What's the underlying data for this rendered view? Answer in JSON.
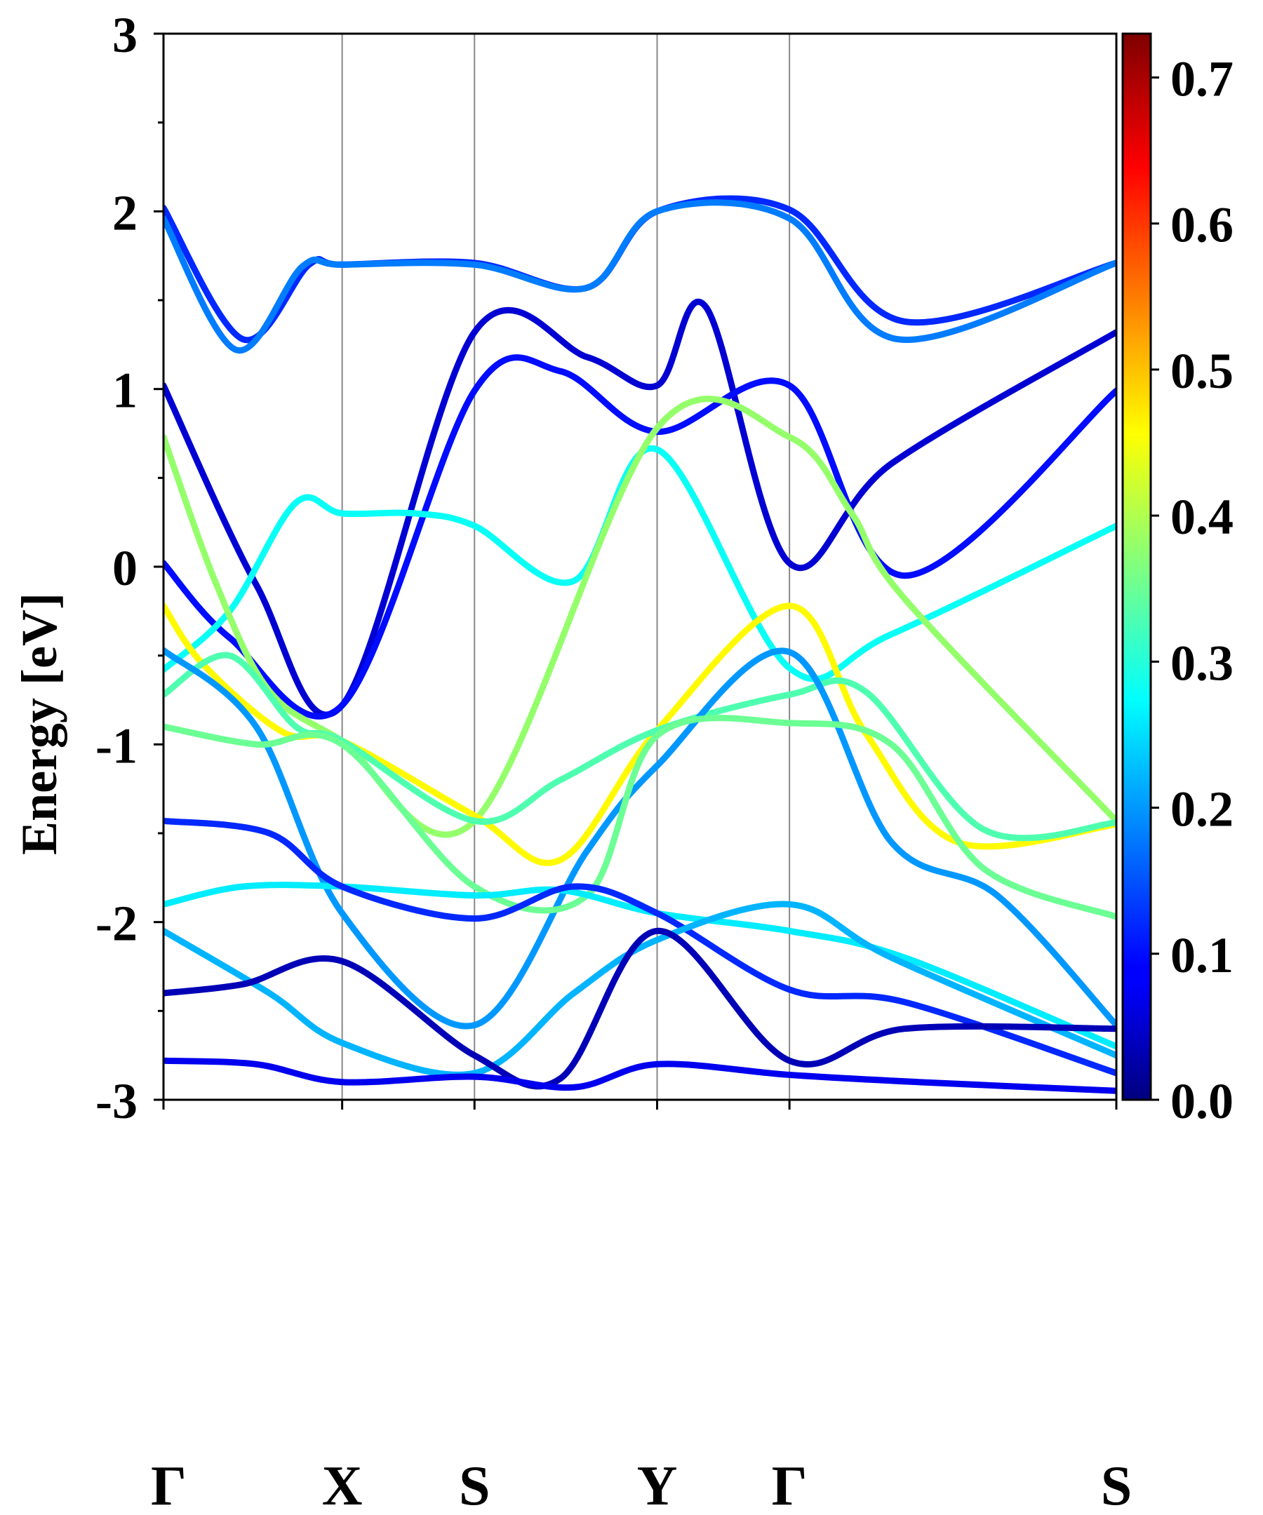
{
  "chart_data": {
    "type": "line",
    "ylabel": "Energy [eV]",
    "ylim": [
      -3,
      3
    ],
    "y_ticks": [
      "3",
      "2",
      "1",
      "0",
      "-1",
      "-2",
      "-3"
    ],
    "y_tick_values": [
      3,
      2,
      1,
      0,
      -1,
      -2,
      -3
    ],
    "x_path": [
      0,
      1.35,
      2.35,
      3.73,
      4.73,
      7.2
    ],
    "k_labels": [
      "Γ",
      "X",
      "S",
      "Y",
      "Γ",
      "S"
    ],
    "vertical_lines_at": [
      1.35,
      2.35,
      3.73,
      4.73
    ],
    "colorbar": {
      "colormap": "jet",
      "range": [
        0.0,
        0.73
      ],
      "ticks": [
        "0.0",
        "0.1",
        "0.2",
        "0.3",
        "0.4",
        "0.5",
        "0.6",
        "0.7"
      ],
      "tick_values": [
        0.0,
        0.1,
        0.2,
        0.3,
        0.4,
        0.5,
        0.6,
        0.7
      ]
    },
    "bands": [
      {
        "c": 0.12,
        "k": [
          0,
          0.6,
          1.1,
          1.35,
          2.35,
          3.2,
          3.73,
          4.73,
          5.6,
          7.2
        ],
        "e": [
          2.02,
          1.28,
          1.7,
          1.7,
          1.71,
          1.57,
          2.0,
          2.01,
          1.38,
          1.71
        ]
      },
      {
        "c": 0.18,
        "k": [
          0,
          0.55,
          1.05,
          1.35,
          2.35,
          3.2,
          3.73,
          4.73,
          5.55,
          7.2
        ],
        "e": [
          1.96,
          1.22,
          1.69,
          1.7,
          1.7,
          1.57,
          2.0,
          1.96,
          1.28,
          1.71
        ]
      },
      {
        "c": 0.06,
        "k": [
          0,
          0.7,
          1.35,
          2.35,
          3.2,
          3.73,
          4.1,
          4.73,
          5.5,
          7.2
        ],
        "e": [
          1.02,
          -0.1,
          -0.78,
          1.32,
          1.18,
          1.02,
          1.46,
          0.02,
          0.58,
          1.32
        ]
      },
      {
        "c": 0.1,
        "k": [
          0,
          0.5,
          1.35,
          2.35,
          3.0,
          3.73,
          4.73,
          5.6,
          7.2
        ],
        "e": [
          0.02,
          -0.4,
          -0.78,
          0.99,
          1.1,
          0.76,
          1.02,
          -0.05,
          0.99
        ]
      },
      {
        "c": 0.28,
        "k": [
          0,
          0.5,
          1.0,
          1.35,
          1.9,
          2.35,
          3.1,
          3.73,
          4.73,
          5.5,
          7.2
        ],
        "e": [
          -0.58,
          -0.25,
          0.36,
          0.3,
          0.3,
          0.23,
          -0.08,
          0.66,
          -0.57,
          -0.38,
          0.23
        ]
      },
      {
        "c": 0.38,
        "k": [
          0,
          0.4,
          0.8,
          1.35,
          2.35,
          3.73,
          4.73,
          5.2,
          5.6,
          7.2
        ],
        "e": [
          0.73,
          -0.1,
          -0.7,
          -0.98,
          -1.43,
          0.78,
          0.73,
          0.3,
          -0.18,
          -1.43
        ]
      },
      {
        "c": 0.46,
        "k": [
          0,
          0.3,
          0.9,
          1.35,
          2.35,
          3.0,
          3.73,
          4.73,
          5.3,
          6.0,
          7.2
        ],
        "e": [
          -0.22,
          -0.55,
          -0.93,
          -0.98,
          -1.4,
          -1.65,
          -0.92,
          -0.22,
          -0.93,
          -1.55,
          -1.45
        ]
      },
      {
        "c": 0.33,
        "k": [
          0,
          0.5,
          1.0,
          1.35,
          2.35,
          3.0,
          3.73,
          4.73,
          5.3,
          6.2,
          7.2
        ],
        "e": [
          -0.72,
          -0.5,
          -0.9,
          -0.98,
          -1.43,
          -1.2,
          -0.92,
          -0.72,
          -0.7,
          -1.48,
          -1.44
        ]
      },
      {
        "c": 0.2,
        "k": [
          0,
          0.7,
          1.35,
          2.35,
          3.2,
          3.73,
          4.73,
          5.5,
          6.3,
          7.2
        ],
        "e": [
          -0.47,
          -0.9,
          -1.95,
          -2.58,
          -1.6,
          -1.12,
          -0.48,
          -1.55,
          -1.85,
          -2.58
        ]
      },
      {
        "c": 0.35,
        "k": [
          0,
          0.7,
          1.35,
          2.35,
          3.2,
          3.73,
          4.73,
          5.5,
          6.2,
          7.2
        ],
        "e": [
          -0.9,
          -1.0,
          -1.0,
          -1.8,
          -1.85,
          -0.95,
          -0.88,
          -1.0,
          -1.7,
          -1.97
        ]
      },
      {
        "c": 0.26,
        "k": [
          0,
          0.6,
          1.35,
          2.35,
          3.0,
          3.73,
          4.73,
          5.6,
          7.2
        ],
        "e": [
          -1.9,
          -1.8,
          -1.8,
          -1.85,
          -1.82,
          -1.95,
          -2.05,
          -2.2,
          -2.7
        ]
      },
      {
        "c": 0.12,
        "k": [
          0,
          0.8,
          1.35,
          2.35,
          3.1,
          3.73,
          4.73,
          5.6,
          7.2
        ],
        "e": [
          -1.43,
          -1.5,
          -1.8,
          -1.98,
          -1.8,
          -1.95,
          -2.38,
          -2.45,
          -2.85
        ]
      },
      {
        "c": 0.22,
        "k": [
          0,
          0.8,
          1.35,
          2.35,
          3.1,
          3.73,
          4.73,
          5.5,
          7.2
        ],
        "e": [
          -2.05,
          -2.4,
          -2.68,
          -2.85,
          -2.4,
          -2.1,
          -1.9,
          -2.2,
          -2.75
        ]
      },
      {
        "c": 0.04,
        "k": [
          0,
          0.6,
          1.35,
          2.35,
          3.0,
          3.73,
          4.73,
          5.6,
          7.2
        ],
        "e": [
          -2.4,
          -2.35,
          -2.22,
          -2.75,
          -2.88,
          -2.05,
          -2.78,
          -2.6,
          -2.6
        ]
      },
      {
        "c": 0.08,
        "k": [
          0,
          0.7,
          1.35,
          2.35,
          3.1,
          3.73,
          4.73,
          5.7,
          7.2
        ],
        "e": [
          -2.78,
          -2.8,
          -2.9,
          -2.87,
          -2.93,
          -2.8,
          -2.86,
          -2.9,
          -2.95
        ]
      }
    ]
  }
}
